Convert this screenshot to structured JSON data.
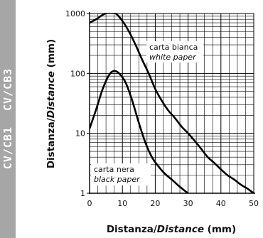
{
  "side_label": {
    "left": "CV/CB1",
    "right": "CV/CB3"
  },
  "chart_data": {
    "type": "line",
    "xlabel": {
      "main": "Distanza/",
      "italic": "Distance",
      "unit": " (mm)"
    },
    "ylabel": {
      "main": "Distanza/",
      "italic": "Distance",
      "unit": " (mm)"
    },
    "xlim": [
      0,
      50
    ],
    "ylim": [
      1,
      1000
    ],
    "yscale": "log",
    "grid": true,
    "x_ticks": [
      0,
      10,
      20,
      30,
      40,
      50
    ],
    "y_ticks": [
      {
        "value": 1,
        "label": "1"
      },
      {
        "value": 10,
        "label": "10"
      },
      {
        "value": 100,
        "label": "100"
      },
      {
        "value": 1000,
        "label": "1000"
      }
    ],
    "series": [
      {
        "name": "carta bianca / white paper",
        "annotation": [
          "carta bianca",
          "white paper"
        ],
        "points": [
          [
            0,
            700
          ],
          [
            2,
            800
          ],
          [
            4,
            950
          ],
          [
            6,
            1050
          ],
          [
            8,
            1000
          ],
          [
            10,
            750
          ],
          [
            12,
            500
          ],
          [
            14,
            300
          ],
          [
            16,
            170
          ],
          [
            18,
            100
          ],
          [
            20,
            55
          ],
          [
            22,
            35
          ],
          [
            24,
            24
          ],
          [
            26,
            18
          ],
          [
            28,
            13
          ],
          [
            30,
            10
          ],
          [
            32,
            7.5
          ],
          [
            34,
            5.5
          ],
          [
            36,
            4
          ],
          [
            38,
            3.2
          ],
          [
            40,
            2.5
          ],
          [
            42,
            2.0
          ],
          [
            44,
            1.7
          ],
          [
            46,
            1.4
          ],
          [
            48,
            1.2
          ],
          [
            50,
            1.0
          ]
        ]
      },
      {
        "name": "carta nera / black paper",
        "annotation": [
          "carta nera",
          "black paper"
        ],
        "points": [
          [
            0,
            12
          ],
          [
            2,
            25
          ],
          [
            4,
            55
          ],
          [
            6,
            95
          ],
          [
            7.5,
            110
          ],
          [
            9,
            100
          ],
          [
            11,
            70
          ],
          [
            13,
            35
          ],
          [
            15,
            15
          ],
          [
            17,
            7
          ],
          [
            19,
            4
          ],
          [
            21,
            2.8
          ],
          [
            23,
            2.1
          ],
          [
            25,
            1.7
          ],
          [
            27,
            1.35
          ],
          [
            29,
            1.1
          ],
          [
            30,
            1.0
          ]
        ]
      }
    ]
  }
}
